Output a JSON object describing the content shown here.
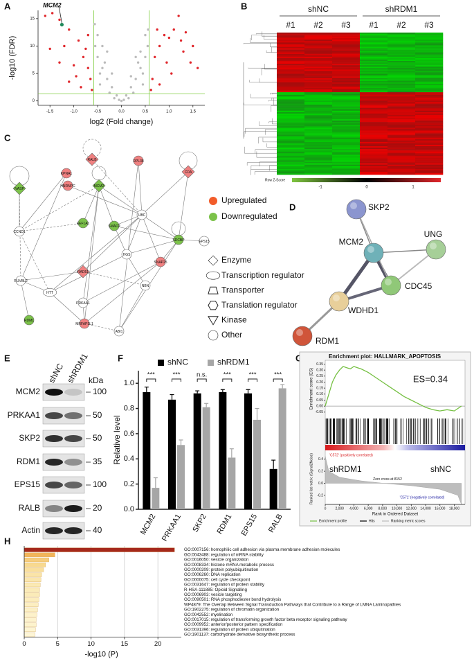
{
  "chart_data": [
    {
      "type": "scatter",
      "label": "A",
      "xlabel": "log2 (Fold change)",
      "ylabel": "-log10 (FDR)",
      "annotation": "MCM2",
      "xlim": [
        -1.75,
        1.75
      ],
      "ylim": [
        -0.8,
        16.5
      ],
      "xticks": [
        -1.5,
        {
          "value": -1,
          "label": "-1.0"
        },
        -0.5,
        {
          "value": 0,
          "label": "0.0"
        },
        0.5,
        {
          "value": 1,
          "label": "1.0"
        },
        1.5
      ],
      "yticks": [
        0,
        5,
        10,
        15
      ],
      "thresholds": {
        "x": [
          -0.58,
          0.58
        ],
        "y": 1.3,
        "color": "#7ccc3a"
      },
      "series": [
        {
          "color": "#bbbbbb",
          "x": [
            0,
            -0.1,
            0.1,
            -0.2,
            0.2,
            -0.3,
            0.3,
            -0.4,
            0.4,
            -0.5,
            0.5,
            -0.55,
            0.55,
            -0.45,
            0.45,
            -0.35,
            0.35,
            -0.5,
            0.5,
            -0.56,
            0.56,
            -0.25,
            0.25,
            -0.15,
            0.15,
            -0.05,
            0.05,
            -0.4,
            0.4,
            -0.3,
            0.3,
            -0.45,
            0.45,
            -0.2,
            0.2
          ],
          "values": [
            0,
            1,
            1,
            2.5,
            2.5,
            4,
            4,
            6,
            6,
            8,
            8,
            10,
            10,
            3,
            3,
            7,
            7,
            12,
            12,
            14,
            13,
            1.5,
            1.5,
            0.5,
            0.5,
            0.2,
            0.2,
            10,
            9,
            9,
            8,
            5,
            5,
            5,
            4.5
          ]
        },
        {
          "color": "#e0262b",
          "x": [
            -1.6,
            -1.45,
            -1.3,
            -1.1,
            -1.5,
            -1.2,
            -0.9,
            -0.8,
            -0.7,
            -0.65,
            -1.0,
            -1.3,
            -0.75,
            -0.95,
            -0.62,
            -0.85,
            -1.1,
            -0.7,
            0.65,
            0.7,
            0.8,
            0.9,
            1.0,
            1.1,
            1.2,
            1.25,
            1.35,
            1.5,
            1.45,
            0.75,
            0.95,
            1.05,
            0.62,
            0.8,
            1.3,
            1.6
          ],
          "values": [
            15.5,
            16,
            14.8,
            13,
            9.5,
            10,
            11,
            8,
            6,
            4,
            6.5,
            7,
            9.5,
            4.5,
            2,
            2.5,
            3.5,
            12,
            4,
            8,
            10,
            12,
            11.5,
            13,
            15.5,
            11,
            12.5,
            10,
            7,
            13,
            7,
            5,
            2,
            3,
            9,
            6
          ]
        },
        {
          "color": "#1f8a5a",
          "x": [
            -1.25
          ],
          "values": [
            13.9
          ]
        }
      ]
    },
    {
      "type": "bar",
      "label": "F",
      "ylabel": "Relative level",
      "categories": [
        "MCM2",
        "PRKAA1",
        "SKP2",
        "RDM1",
        "EPS15",
        "RALB"
      ],
      "ylim": [
        0,
        1.1
      ],
      "yticks": [
        {
          "value": 0,
          "label": "0.0"
        },
        0.2,
        0.4,
        0.6,
        0.8,
        {
          "value": 1,
          "label": "1.0"
        }
      ],
      "significance": [
        "***",
        "***",
        "n.s.",
        "***",
        "***",
        "***"
      ],
      "series": [
        {
          "name": "shNC",
          "color": "#000000",
          "values": [
            0.93,
            0.87,
            0.92,
            0.93,
            0.92,
            0.32
          ],
          "errors": [
            0.04,
            0.04,
            0.02,
            0.02,
            0.03,
            0.07
          ]
        },
        {
          "name": "shRDM1",
          "color": "#a6a6a6",
          "values": [
            0.17,
            0.51,
            0.81,
            0.41,
            0.71,
            0.96
          ],
          "errors": [
            0.08,
            0.04,
            0.03,
            0.07,
            0.09,
            0.03
          ]
        }
      ]
    },
    {
      "type": "line",
      "label": "G",
      "title": "Enrichment plot: HALLMARK_APOPTOSIS",
      "annotation": "ES=0.34",
      "ylabel": "Enrichment score (ES)",
      "xlabel": "Rank in Ordered Dataset",
      "color": "#76c043",
      "xlim": [
        0,
        19500
      ],
      "ylim": [
        -0.08,
        0.37
      ],
      "xticks": [
        0,
        {
          "value": 2000,
          "label": "2,000"
        },
        {
          "value": 4000,
          "label": "4,000"
        },
        {
          "value": 6000,
          "label": "6,000"
        },
        {
          "value": 8000,
          "label": "8,000"
        },
        {
          "value": 10000,
          "label": "10,000"
        },
        {
          "value": 12000,
          "label": "12,000"
        },
        {
          "value": 14000,
          "label": "14,000"
        },
        {
          "value": 16000,
          "label": "16,000"
        },
        {
          "value": 18000,
          "label": "18,000"
        }
      ],
      "yticks": [
        0.35,
        {
          "value": 0.3,
          "label": "0.30"
        },
        0.25,
        {
          "value": 0.2,
          "label": "0.20"
        },
        0.15,
        {
          "value": 0.1,
          "label": "0.10"
        },
        0.05,
        {
          "value": 0,
          "label": "0.00"
        },
        -0.05
      ],
      "x": [
        0,
        500,
        1000,
        1500,
        2000,
        2500,
        3000,
        3500,
        4000,
        4500,
        5000,
        6000,
        7000,
        8000,
        9000,
        10000,
        11000,
        12000,
        13000,
        14000,
        15000,
        16000,
        17000,
        18000,
        18500,
        19000
      ],
      "values": [
        0,
        0.1,
        0.2,
        0.26,
        0.3,
        0.33,
        0.32,
        0.31,
        0.33,
        0.32,
        0.31,
        0.28,
        0.24,
        0.2,
        0.16,
        0.12,
        0.08,
        0.05,
        0.02,
        -0.01,
        -0.03,
        -0.04,
        -0.03,
        -0.04,
        -0.02,
        0
      ],
      "metric": {
        "ylabel": "Ranked list metric (Signal2Noise)",
        "ylim": [
          -0.35,
          0.5
        ],
        "yticks": [
          0.4,
          0.2,
          {
            "value": 0,
            "label": "0.0"
          },
          -0.2
        ],
        "x": [
          0,
          500,
          2000,
          5000,
          8152,
          12000,
          16000,
          18500,
          19000
        ],
        "values": [
          0.45,
          0.2,
          0.1,
          0.04,
          0,
          -0.04,
          -0.1,
          -0.2,
          -0.35
        ],
        "positive_label": "'C572' (positively correlated)",
        "zero_cross": "Zero cross at 8152",
        "negative_label": "'C571' (negatively correlated)"
      },
      "phenotypes": [
        "shRDM1",
        "shNC"
      ],
      "legend": [
        "Enrichment profile",
        "Hits",
        "Ranking metric scores"
      ]
    },
    {
      "type": "bar",
      "orientation": "horizontal",
      "label": "H",
      "xlabel": "-log10 (P)",
      "xlim": [
        0,
        23.5
      ],
      "xticks": [
        0,
        5,
        10,
        15,
        20
      ],
      "categories": [
        "GO:0007156: homophilic cell adhesion via plasma membrane adhesion molecules",
        "GO:0043488: regulation of mRNA stability",
        "GO:0016050: vesicle organization",
        "GO:0008334: histone mRNA metabolic process",
        "GO:0000209: protein polyubiquitination",
        "GO:0006260: DNA replication",
        "GO:0000075: cell cycle checkpoint",
        "GO:0031647: regulation of protein stability",
        "R-HSA-111885: Opioid Signalling",
        "GO:0006903: vesicle targeting",
        "GO:0090501: RNA phosphodiester bond hydrolysis",
        "WP4879: The Overlap Between Signal Transduction Pathways that Contribute to a Range of LMNA Laminopathies",
        "GO:1902275: regulation of chromatin organization",
        "GO:0042552: myelination",
        "GO:0017015: regulation of transforming growth factor beta receptor signaling pathway",
        "GO:0009952: anterior/posterior pattern specification",
        "GO:0031396: regulation of protein ubiquitination",
        "GO:1901137: carbohydrate derivative biosynthetic process"
      ],
      "values": [
        22.5,
        4.6,
        3.7,
        3.2,
        2.9,
        2.6,
        2.5,
        2.4,
        2.3,
        2.3,
        2.2,
        2.1,
        2.0,
        1.9,
        1.8,
        1.8,
        1.7,
        1.6
      ],
      "colors": [
        "#a5281b",
        "#f2b55a",
        "#f6cd7d",
        "#f8d98f",
        "#f9df9c",
        "#fae4a8",
        "#fae6ad",
        "#fbe9b3",
        "#fbebb8",
        "#fbebb8",
        "#fcedbd",
        "#fceec1",
        "#fcf0c6",
        "#fdf2ca",
        "#fdf3cd",
        "#fdf3cd",
        "#fdf5d2",
        "#fef6d6"
      ]
    }
  ],
  "figure": {
    "B": {
      "label": "B",
      "groups": [
        "shNC",
        "shRDM1"
      ],
      "replicates": [
        "#1",
        "#2",
        "#3",
        "#1",
        "#2",
        "#3"
      ],
      "colorbar_title": "Row Z-Score",
      "colorbar_ticks": [
        "-1",
        "0",
        "1"
      ]
    },
    "C": {
      "label": "C",
      "nodes": [
        "RALB",
        "RPL38",
        "KPNA1",
        "CDA",
        "HNRNPC",
        "MCM2",
        "NASP",
        "UBC",
        "EEF1A1",
        "SMAD2",
        "SDCBP",
        "EPS15",
        "CCND1",
        "HGS",
        "SNAP25",
        "RAD51",
        "RUVBL2",
        "HTT",
        "PRKAA1",
        "NBN",
        "RDM1",
        "MRFAP1L1",
        "ABI1"
      ],
      "regulation": [
        "Upregulated",
        "Downregulated"
      ],
      "shapes": [
        "Enzyme",
        "Transcription regulator",
        "Transporter",
        "Translation regulator",
        "Kinase",
        "Other"
      ]
    },
    "D": {
      "label": "D",
      "nodes": [
        "SKP2",
        "MCM2",
        "UNG",
        "CDC45",
        "WDHD1",
        "RDM1"
      ]
    },
    "E": {
      "label": "E",
      "lanes": [
        "shNC",
        "shRDM1"
      ],
      "unit": "kDa",
      "proteins": [
        "MCM2",
        "PRKAA1",
        "SKP2",
        "RDM1",
        "EPS15",
        "RALB",
        "Actin"
      ],
      "markers": [
        "100",
        "50",
        "50",
        "35",
        "100",
        "20",
        "40"
      ]
    }
  }
}
